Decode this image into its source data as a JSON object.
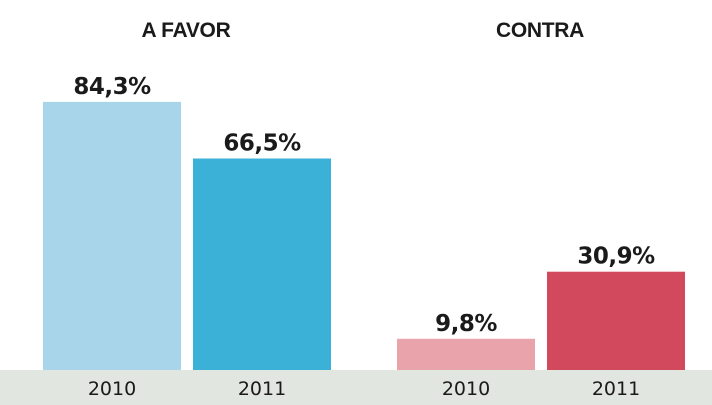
{
  "chart_data": [
    {
      "type": "bar",
      "title": "A FAVOR",
      "xlabel": "",
      "ylabel": "",
      "ylim": [
        0,
        100
      ],
      "grid": false,
      "categories": [
        "2010",
        "2011"
      ],
      "values": [
        84.3,
        66.5
      ],
      "value_labels": [
        "84,3%",
        "66,5%"
      ],
      "colors": [
        "#a8d5ea",
        "#3bb1d8"
      ]
    },
    {
      "type": "bar",
      "title": "CONTRA",
      "xlabel": "",
      "ylabel": "",
      "ylim": [
        0,
        100
      ],
      "grid": false,
      "categories": [
        "2010",
        "2011"
      ],
      "values": [
        9.8,
        30.9
      ],
      "value_labels": [
        "9,8%",
        "30,9%"
      ],
      "colors": [
        "#e9a3aa",
        "#d2485d"
      ]
    }
  ],
  "style": {
    "axis_band_color": "#e2e6e0",
    "text_color": "#1a1a1a",
    "background": "#ffffff"
  }
}
